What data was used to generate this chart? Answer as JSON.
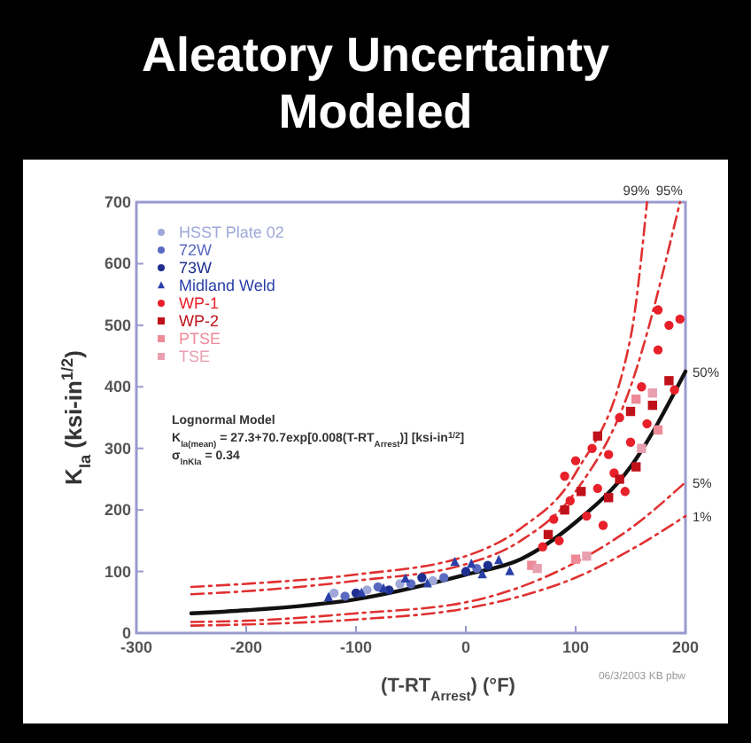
{
  "chart_data": {
    "type": "scatter",
    "title": "Aleatory Uncertainty Modeled",
    "xlabel": "(T-RT$_{Arrest}$) (°F)",
    "ylabel": "K$_{Ia}$ (ksi-in$^{1/2}$)",
    "xlim": [
      -300,
      200
    ],
    "xticks": [
      -300,
      -200,
      -100,
      0,
      100,
      200
    ],
    "ylim": [
      0,
      700
    ],
    "yticks": [
      0,
      100,
      200,
      300,
      400,
      500,
      600,
      700
    ],
    "grid": false,
    "legend": "top left",
    "annotations": [
      "Lognormal Model",
      "K$_{Ia(mean)}$ = 27.3+70.7exp[0.008(T-RT$_{Arrest}$)] [ksi-in$^{1/2}$]",
      "σ$_{lnKIa}$ = 0.34",
      "06/3/2003 KB pbw"
    ],
    "series": [
      {
        "name": "HSST Plate 02",
        "marker": "circle",
        "color": "#9fa8d8",
        "x": [
          -120,
          -90,
          -60,
          -30
        ],
        "values": [
          65,
          70,
          80,
          85
        ]
      },
      {
        "name": "72W",
        "marker": "circle",
        "color": "#5a6ac0",
        "x": [
          -110,
          -80,
          -50,
          -20,
          10
        ],
        "values": [
          60,
          75,
          80,
          90,
          105
        ]
      },
      {
        "name": "73W",
        "marker": "circle",
        "color": "#1f2f8f",
        "x": [
          -100,
          -70,
          -40,
          0,
          20
        ],
        "values": [
          65,
          70,
          90,
          100,
          110
        ]
      },
      {
        "name": "Midland Weld",
        "marker": "triangle",
        "color": "#2a40a8",
        "x": [
          -125,
          -95,
          -75,
          -55,
          -35,
          -10,
          5,
          15,
          30,
          40
        ],
        "values": [
          58,
          65,
          72,
          88,
          80,
          115,
          112,
          95,
          118,
          100
        ]
      },
      {
        "name": "WP-1",
        "marker": "circle",
        "color": "#e8202a",
        "x": [
          70,
          80,
          85,
          90,
          95,
          100,
          110,
          115,
          120,
          125,
          130,
          135,
          140,
          145,
          150,
          160,
          165,
          175,
          175,
          185,
          195,
          190
        ],
        "values": [
          140,
          185,
          150,
          255,
          215,
          280,
          190,
          300,
          235,
          175,
          290,
          260,
          350,
          230,
          310,
          400,
          340,
          460,
          525,
          500,
          510,
          395
        ]
      },
      {
        "name": "WP-2",
        "marker": "square",
        "color": "#c0101a",
        "x": [
          75,
          90,
          105,
          120,
          130,
          140,
          150,
          155,
          170,
          185
        ],
        "values": [
          160,
          200,
          230,
          320,
          220,
          250,
          360,
          270,
          370,
          410
        ]
      },
      {
        "name": "PTSE",
        "marker": "square",
        "color": "#ee8a98",
        "x": [
          60,
          100,
          155,
          175
        ],
        "values": [
          110,
          120,
          380,
          330
        ]
      },
      {
        "name": "TSE",
        "marker": "square",
        "color": "#e8a0b0",
        "x": [
          65,
          110,
          160,
          170
        ],
        "values": [
          105,
          125,
          300,
          390
        ]
      },
      {
        "name": "99%",
        "type": "line",
        "line_style": "dashed",
        "color": "#e03030",
        "x": [
          -250,
          -200,
          -100,
          0,
          50,
          100,
          150,
          165
        ],
        "values": [
          75,
          80,
          95,
          125,
          170,
          260,
          480,
          700
        ]
      },
      {
        "name": "95%",
        "type": "line",
        "line_style": "dashed",
        "color": "#e03030",
        "x": [
          -250,
          -200,
          -100,
          0,
          50,
          100,
          150,
          195
        ],
        "values": [
          63,
          68,
          85,
          112,
          150,
          230,
          400,
          700
        ]
      },
      {
        "name": "50%",
        "type": "line",
        "line_style": "solid",
        "color": "#111111",
        "x": [
          -250,
          -200,
          -100,
          0,
          50,
          100,
          150,
          200
        ],
        "values": [
          32,
          37,
          55,
          95,
          120,
          180,
          270,
          425
        ]
      },
      {
        "name": "5%",
        "type": "line",
        "line_style": "dashed",
        "color": "#e03030",
        "x": [
          -250,
          -200,
          -100,
          0,
          50,
          100,
          150,
          200
        ],
        "values": [
          18,
          20,
          32,
          50,
          75,
          115,
          170,
          245
        ]
      },
      {
        "name": "1%",
        "type": "line",
        "line_style": "dashed",
        "color": "#e03030",
        "x": [
          -250,
          -200,
          -100,
          0,
          50,
          100,
          150,
          200
        ],
        "values": [
          12,
          14,
          22,
          40,
          60,
          90,
          135,
          190
        ]
      }
    ]
  }
}
